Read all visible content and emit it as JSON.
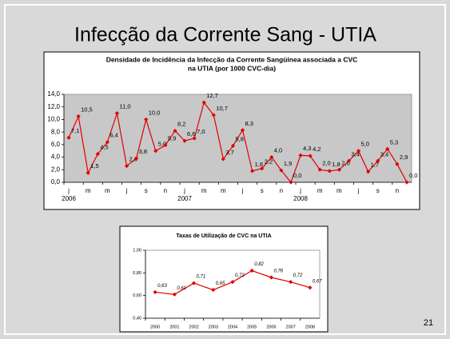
{
  "title": "Infecção da Corrente Sang - UTIA",
  "page_number": "21",
  "chart_data": [
    {
      "type": "line",
      "title": [
        "Densidade de Incidência da Infecção da Corrente Sangüínea associada a CVC",
        "na UTIA (por 1000 CVC-dia)"
      ],
      "categories": [
        "j",
        null,
        "m",
        null,
        "m",
        null,
        "j",
        null,
        "s",
        null,
        "n",
        null,
        "j",
        null,
        "m",
        null,
        "m",
        null,
        "j",
        null,
        "s",
        null,
        "n",
        null,
        "j",
        null,
        "m",
        null,
        "m",
        null,
        "j",
        null,
        "s",
        null,
        "n",
        null
      ],
      "years": [
        "2006",
        "2007",
        "2008"
      ],
      "values": [
        7.1,
        10.5,
        1.5,
        4.5,
        6.4,
        11.0,
        2.6,
        3.8,
        10.0,
        5.0,
        5.9,
        8.2,
        6.6,
        7.0,
        12.7,
        10.7,
        3.7,
        5.8,
        8.3,
        1.8,
        2.2,
        4.0,
        1.9,
        0.0,
        4.3,
        4.2,
        2.0,
        1.8,
        2.0,
        3.4,
        5.0,
        1.7,
        3.4,
        5.3,
        2.9,
        0.0
      ],
      "value_labels": [
        "7,1",
        "10,5",
        "1,5",
        "4,5",
        "6,4",
        "11,0",
        "2,6",
        "3,8",
        "10,0",
        "5,0",
        "5,9",
        "8,2",
        "6,6",
        "7,0",
        "12,7",
        "10,7",
        "3,7",
        "5,8",
        "8,3",
        "1,8",
        "2,2",
        "4,0",
        "1,9",
        "0,0",
        "4,3",
        "4,2",
        "2,0",
        "1,8",
        "2,0",
        "3,4",
        "5,0",
        "1,7",
        "3,4",
        "5,3",
        "2,9",
        "0,0"
      ],
      "color": "#e00000",
      "ylim": [
        0,
        14
      ],
      "yticks": [
        {
          "value": 0,
          "label": "0,0"
        },
        {
          "value": 2,
          "label": "2,0"
        },
        {
          "value": 4,
          "label": "4,0"
        },
        {
          "value": 6,
          "label": "6,0"
        },
        {
          "value": 8,
          "label": "8,0"
        },
        {
          "value": 10,
          "label": "10,0"
        },
        {
          "value": 12,
          "label": "12,0"
        },
        {
          "value": 14,
          "label": "14,0"
        }
      ],
      "grid": false,
      "plot_background": "#c8c8c8"
    },
    {
      "type": "line",
      "title": [
        "Taxas de Utilização de CVC na UTIA"
      ],
      "categories": [
        "2000",
        "2001",
        "2002",
        "2003",
        "2004",
        "2005",
        "2006",
        "2007",
        "2008"
      ],
      "values": [
        0.63,
        0.61,
        0.71,
        0.65,
        0.72,
        0.82,
        0.76,
        0.72,
        0.67
      ],
      "value_labels": [
        "0,63",
        "0,61",
        "0,71",
        "0,65",
        "0,72",
        "0,82",
        "0,76",
        "0,72",
        "0,67"
      ],
      "color": "#e00000",
      "ylim": [
        0.4,
        1.0
      ],
      "yticks": [
        {
          "value": 0.4,
          "label": "0,40"
        },
        {
          "value": 0.6,
          "label": "0,60"
        },
        {
          "value": 0.8,
          "label": "0,80"
        },
        {
          "value": 1.0,
          "label": "1,00"
        }
      ],
      "grid": false,
      "plot_background": "#ffffff"
    }
  ]
}
